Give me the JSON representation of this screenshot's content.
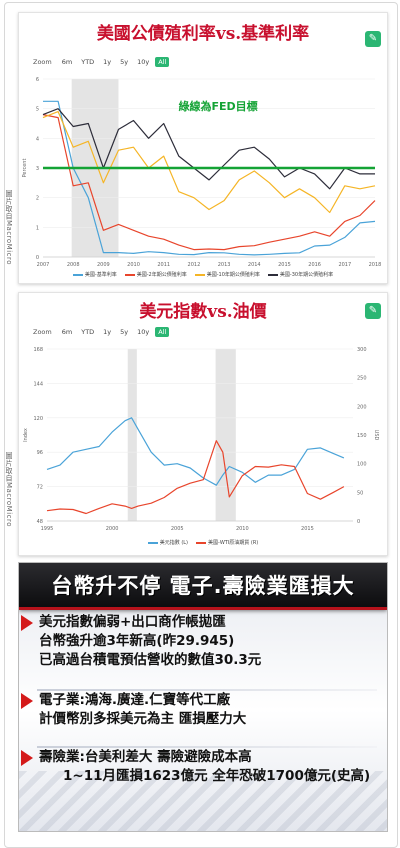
{
  "credits": {
    "c1": "圖片取自MacroMicro",
    "c2": "圖片取自MacroMicro"
  },
  "chart_data": [
    {
      "type": "line",
      "title": "美國公債殖利率vs.基準利率",
      "annotation": "綠線為FED目標",
      "zoom": {
        "label": "Zoom",
        "buttons": [
          "6m",
          "YTD",
          "1y",
          "5y",
          "10y",
          "All"
        ],
        "active": "All"
      },
      "ylabel": "Percent",
      "ylim": [
        0,
        6
      ],
      "yticks": [
        0,
        1,
        2,
        3,
        4,
        5,
        6
      ],
      "x": [
        2007.0,
        2007.5,
        2008.0,
        2008.5,
        2009.0,
        2009.5,
        2010.0,
        2010.5,
        2011.0,
        2011.5,
        2012.0,
        2012.5,
        2013.0,
        2013.5,
        2014.0,
        2014.5,
        2015.0,
        2015.5,
        2016.0,
        2016.5,
        2017.0,
        2017.5,
        2018.0
      ],
      "xlim": [
        2007,
        2018
      ],
      "xticks": [
        "2007",
        "2008",
        "2009",
        "2010",
        "2011",
        "2012",
        "2013",
        "2014",
        "2015",
        "2016",
        "2017",
        "2018"
      ],
      "recessions": [
        [
          2007.95,
          2009.5
        ]
      ],
      "fed_target": 3.0,
      "fed_target_color": "#14a335",
      "series": [
        {
          "name": "美國-基準利率",
          "color": "#4aa3d8",
          "values": [
            5.25,
            5.25,
            3.0,
            2.0,
            0.15,
            0.15,
            0.12,
            0.18,
            0.15,
            0.09,
            0.08,
            0.15,
            0.14,
            0.09,
            0.07,
            0.09,
            0.12,
            0.14,
            0.37,
            0.4,
            0.66,
            1.15,
            1.2
          ]
        },
        {
          "name": "美國-2年期公債殖利率",
          "color": "#e8452c",
          "values": [
            4.8,
            4.7,
            2.4,
            2.5,
            0.9,
            1.1,
            0.9,
            0.7,
            0.6,
            0.4,
            0.25,
            0.27,
            0.25,
            0.35,
            0.38,
            0.5,
            0.6,
            0.7,
            0.85,
            0.7,
            1.2,
            1.4,
            1.9
          ]
        },
        {
          "name": "美國-10年期公債殖利率",
          "color": "#f5b526",
          "values": [
            4.7,
            4.9,
            3.7,
            3.9,
            2.5,
            3.6,
            3.7,
            3.0,
            3.4,
            2.2,
            2.0,
            1.6,
            1.9,
            2.6,
            2.9,
            2.5,
            2.0,
            2.3,
            2.0,
            1.5,
            2.4,
            2.3,
            2.4
          ]
        },
        {
          "name": "美國-30年期公債殖利率",
          "color": "#2d2d3a",
          "values": [
            4.8,
            5.0,
            4.4,
            4.5,
            3.0,
            4.3,
            4.6,
            4.0,
            4.5,
            3.4,
            3.0,
            2.6,
            3.1,
            3.6,
            3.7,
            3.3,
            2.7,
            3.0,
            2.8,
            2.3,
            3.0,
            2.8,
            2.8
          ]
        }
      ]
    },
    {
      "type": "line",
      "title": "美元指數vs.油價",
      "zoom": {
        "label": "Zoom",
        "buttons": [
          "6m",
          "YTD",
          "1y",
          "5y",
          "10y",
          "All"
        ],
        "active": "All"
      },
      "ylabel_left": "Index",
      "ylabel_right": "USD",
      "ylim_left": [
        48,
        168
      ],
      "ylim_right": [
        0,
        300
      ],
      "yticks_left": [
        48,
        72,
        96,
        120,
        144,
        168
      ],
      "yticks_right": [
        0,
        50,
        100,
        150,
        200,
        250,
        300
      ],
      "x": [
        1995.0,
        1996.0,
        1997.0,
        1998.0,
        1999.0,
        2000.0,
        2001.0,
        2001.5,
        2002.0,
        2003.0,
        2004.0,
        2005.0,
        2006.0,
        2007.0,
        2008.0,
        2008.5,
        2009.0,
        2010.0,
        2011.0,
        2012.0,
        2013.0,
        2014.0,
        2015.0,
        2016.0,
        2017.0,
        2017.8
      ],
      "xlim": [
        1995,
        2018.5
      ],
      "xticks": [
        "1995",
        "2000",
        "2005",
        "2010",
        "2015"
      ],
      "recessions": [
        [
          2001.2,
          2001.9
        ],
        [
          2007.95,
          2009.5
        ]
      ],
      "series": [
        {
          "name": "美元指數 (L)",
          "color": "#4aa3d8",
          "axis": "left",
          "values": [
            84,
            87,
            96,
            98,
            100,
            110,
            118,
            120,
            112,
            96,
            87,
            88,
            85,
            78,
            73,
            80,
            86,
            82,
            75,
            80,
            80,
            84,
            98,
            99,
            95,
            92
          ]
        },
        {
          "name": "美國-WTI原油期貨 (R)",
          "color": "#e8452c",
          "axis": "right",
          "values": [
            18,
            21,
            20,
            13,
            22,
            30,
            26,
            22,
            26,
            31,
            41,
            57,
            66,
            72,
            140,
            120,
            42,
            79,
            95,
            94,
            98,
            95,
            48,
            38,
            50,
            60
          ]
        }
      ]
    }
  ],
  "news": {
    "headline": "台幣升不停  電子.壽險業匯損大",
    "bullets": [
      {
        "lines": [
          "美元指數偏弱+出口商作帳拋匯",
          "台幣強升逾3年新高(昨29.945)",
          "已高過台積電預估營收的數值30.3元"
        ]
      },
      {
        "lines": [
          "電子業:鴻海.廣達.仁寶等代工廠",
          "計價幣別多採美元為主 匯損壓力大"
        ]
      },
      {
        "lines": [
          "壽險業:台美利差大 壽險避險成本高",
          "1~11月匯損1623億元 全年恐破1700億元(史高)"
        ]
      }
    ]
  }
}
